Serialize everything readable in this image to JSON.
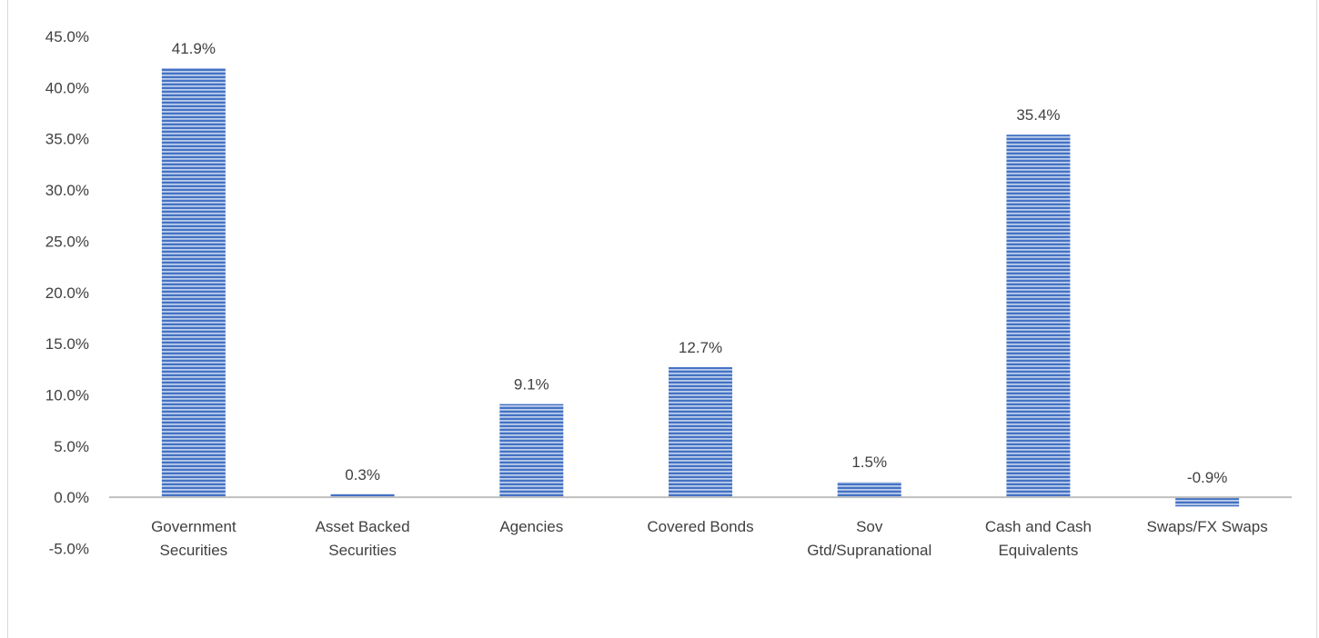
{
  "chart_data": {
    "type": "bar",
    "title": "",
    "xlabel": "",
    "ylabel": "",
    "categories": [
      [
        "Government",
        "Securities"
      ],
      [
        "Asset Backed",
        "Securities"
      ],
      [
        "Agencies"
      ],
      [
        "Covered Bonds"
      ],
      [
        "Sov",
        "Gtd/Supranational"
      ],
      [
        "Cash and Cash",
        "Equivalents"
      ],
      [
        "Swaps/FX Swaps"
      ]
    ],
    "values": [
      41.9,
      0.3,
      9.1,
      12.7,
      1.5,
      35.4,
      -0.9
    ],
    "data_labels": [
      "41.9%",
      "0.3%",
      "9.1%",
      "12.7%",
      "1.5%",
      "35.4%",
      "-0.9%"
    ],
    "y_ticks": [
      "-5.0%",
      "0.0%",
      "5.0%",
      "10.0%",
      "15.0%",
      "20.0%",
      "25.0%",
      "30.0%",
      "35.0%",
      "40.0%",
      "45.0%"
    ],
    "ylim": [
      -5,
      45
    ],
    "grid": false,
    "legend": "none",
    "bar_color": "#4472c4",
    "bar_stripe_color": "#dce6f5",
    "axis_color": "#bfbfbf",
    "text_color": "#404040"
  }
}
